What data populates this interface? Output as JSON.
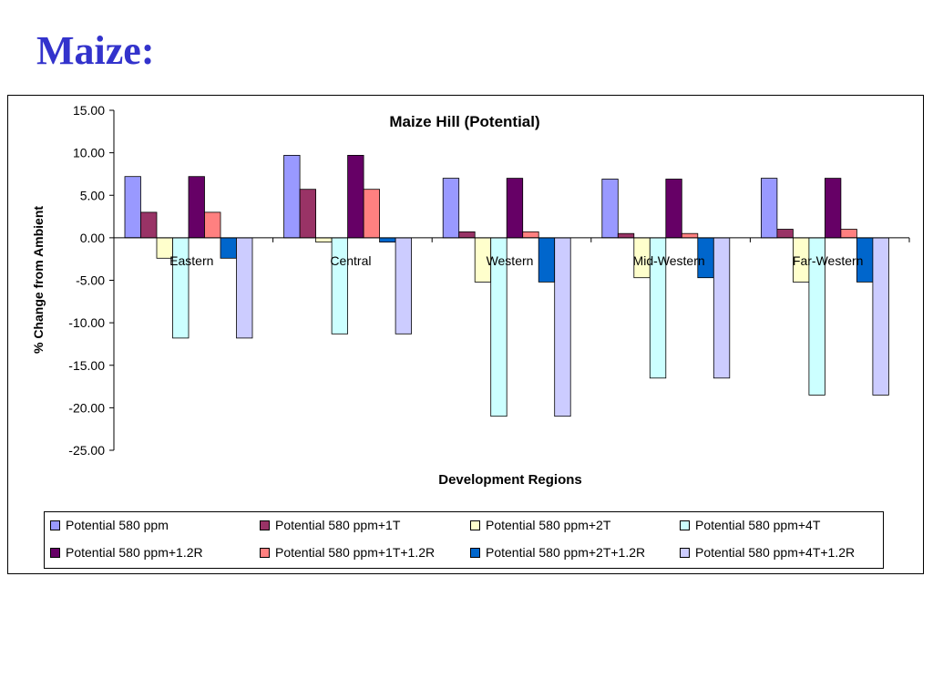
{
  "slide": {
    "title": "Maize:"
  },
  "chart_data": {
    "type": "bar",
    "title": "Maize Hill (Potential)",
    "xlabel": "Development Regions",
    "ylabel": "% Change from Ambient",
    "ylim": [
      -25,
      15
    ],
    "yticks": [
      "15.00",
      "10.00",
      "5.00",
      "0.00",
      "-5.00",
      "-10.00",
      "-15.00",
      "-20.00",
      "-25.00"
    ],
    "categories": [
      "Eastern",
      "Central",
      "Western",
      "Mid-Western",
      "Far-Western"
    ],
    "legend_position": "bottom",
    "grid": false,
    "series": [
      {
        "name": "Potential 580 ppm",
        "color": "#9999ff",
        "values": [
          7.2,
          9.7,
          7.0,
          6.9,
          7.0
        ]
      },
      {
        "name": "Potential 580 ppm+1T",
        "color": "#993366",
        "values": [
          3.0,
          5.7,
          0.7,
          0.5,
          1.0
        ]
      },
      {
        "name": "Potential 580 ppm+2T",
        "color": "#ffffcc",
        "values": [
          -2.4,
          -0.5,
          -5.2,
          -4.7,
          -5.2
        ]
      },
      {
        "name": "Potential 580 ppm+4T",
        "color": "#ccffff",
        "values": [
          -11.8,
          -11.3,
          -21.0,
          -16.5,
          -18.5
        ]
      },
      {
        "name": "Potential 580 ppm+1.2R",
        "color": "#660066",
        "values": [
          7.2,
          9.7,
          7.0,
          6.9,
          7.0
        ]
      },
      {
        "name": "Potential 580 ppm+1T+1.2R",
        "color": "#ff8080",
        "values": [
          3.0,
          5.7,
          0.7,
          0.5,
          1.0
        ]
      },
      {
        "name": "Potential 580 ppm+2T+1.2R",
        "color": "#0066cc",
        "values": [
          -2.4,
          -0.5,
          -5.2,
          -4.7,
          -5.2
        ]
      },
      {
        "name": "Potential 580 ppm+4T+1.2R",
        "color": "#ccccff",
        "values": [
          -11.8,
          -11.3,
          -21.0,
          -16.5,
          -18.5
        ]
      }
    ]
  }
}
